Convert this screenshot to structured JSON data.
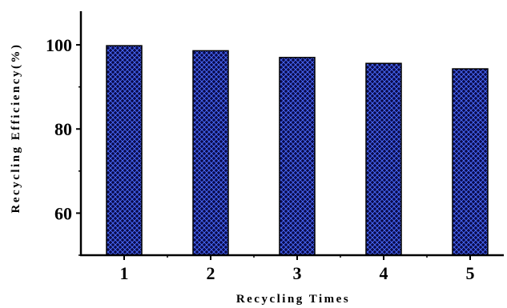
{
  "chart_data": {
    "type": "bar",
    "categories": [
      "1",
      "2",
      "3",
      "4",
      "5"
    ],
    "values": [
      99.8,
      98.6,
      97.0,
      95.6,
      94.3
    ],
    "xlabel": "Recycling Times",
    "ylabel": "Recycling Efficiency(%)",
    "ylim": [
      50,
      108
    ],
    "yticks": [
      60,
      80,
      100
    ],
    "grid": false,
    "colors": {
      "bar_fill": "#0a0a4a",
      "bar_hatch": "#4a6cff",
      "axis": "#000000"
    }
  }
}
